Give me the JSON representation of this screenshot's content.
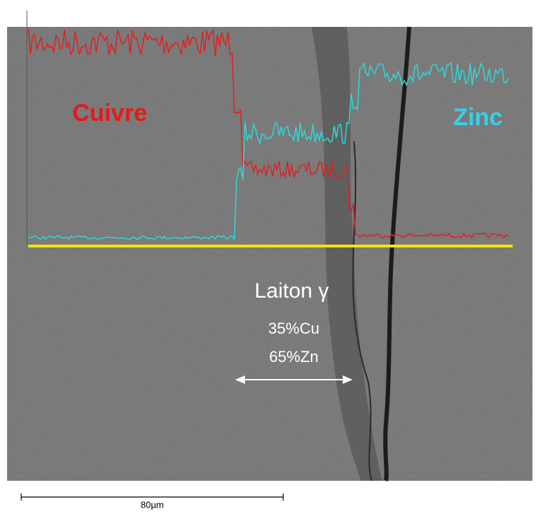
{
  "labels": {
    "copper": "Cuivre",
    "zinc": "Zinc",
    "phase": "Laiton γ",
    "cu_content": "35%Cu",
    "zn_content": "65%Zn"
  },
  "scale_bar": "80µm"
}
